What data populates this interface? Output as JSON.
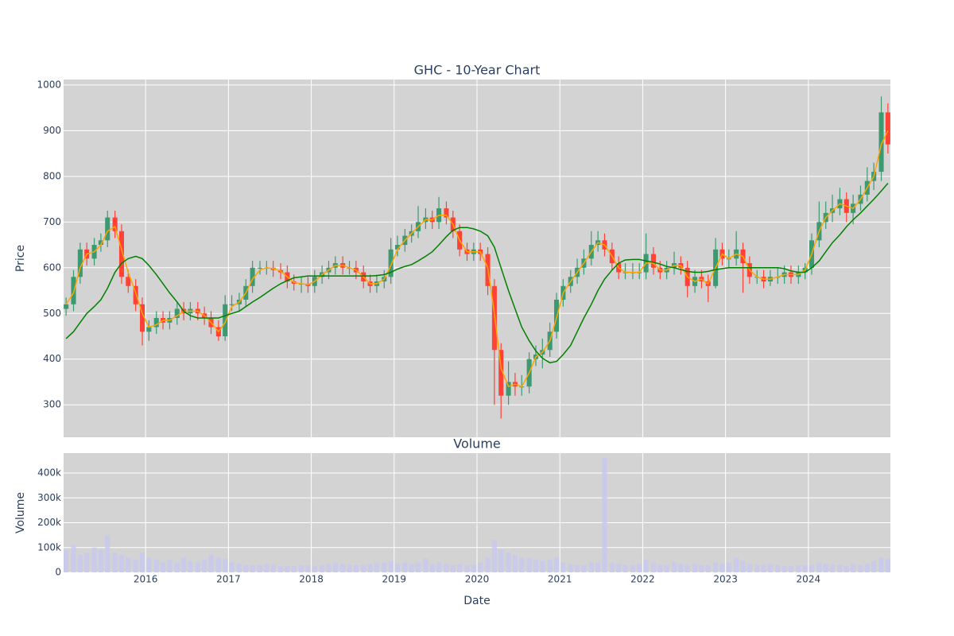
{
  "chart_data": {
    "type": "candlestick",
    "title": "GHC - 10-Year Chart",
    "ylabel": "Price",
    "xlabel": "Date",
    "grid": true,
    "increasing_color": "#3d9970",
    "decreasing_color": "#ff4136",
    "xlim": [
      2015.01,
      2024.99
    ],
    "xticks": [
      2016,
      2017,
      2018,
      2019,
      2020,
      2021,
      2022,
      2023,
      2024
    ],
    "ylim": [
      229,
      1012
    ],
    "yticks": [
      300,
      400,
      500,
      600,
      700,
      800,
      900,
      1000
    ],
    "x": [
      2015.04,
      2015.13,
      2015.21,
      2015.29,
      2015.38,
      2015.46,
      2015.54,
      2015.63,
      2015.71,
      2015.79,
      2015.88,
      2015.96,
      2016.04,
      2016.13,
      2016.21,
      2016.29,
      2016.38,
      2016.46,
      2016.54,
      2016.63,
      2016.71,
      2016.79,
      2016.88,
      2016.96,
      2017.04,
      2017.13,
      2017.21,
      2017.29,
      2017.38,
      2017.46,
      2017.54,
      2017.63,
      2017.71,
      2017.79,
      2017.88,
      2017.96,
      2018.04,
      2018.13,
      2018.21,
      2018.29,
      2018.38,
      2018.46,
      2018.54,
      2018.63,
      2018.71,
      2018.79,
      2018.88,
      2018.96,
      2019.04,
      2019.13,
      2019.21,
      2019.29,
      2019.38,
      2019.46,
      2019.54,
      2019.63,
      2019.71,
      2019.79,
      2019.88,
      2019.96,
      2020.04,
      2020.13,
      2020.21,
      2020.29,
      2020.38,
      2020.46,
      2020.54,
      2020.63,
      2020.71,
      2020.79,
      2020.88,
      2020.96,
      2021.04,
      2021.13,
      2021.21,
      2021.29,
      2021.38,
      2021.46,
      2021.54,
      2021.63,
      2021.71,
      2021.79,
      2021.88,
      2021.96,
      2022.04,
      2022.13,
      2022.21,
      2022.29,
      2022.38,
      2022.46,
      2022.54,
      2022.63,
      2022.71,
      2022.79,
      2022.88,
      2022.96,
      2023.04,
      2023.13,
      2023.21,
      2023.29,
      2023.38,
      2023.46,
      2023.54,
      2023.63,
      2023.71,
      2023.79,
      2023.88,
      2023.96,
      2024.04,
      2024.13,
      2024.21,
      2024.29,
      2024.38,
      2024.46,
      2024.54,
      2024.63,
      2024.71,
      2024.79,
      2024.88,
      2024.96
    ],
    "open": [
      510,
      520,
      580,
      640,
      620,
      650,
      660,
      710,
      680,
      580,
      560,
      520,
      460,
      470,
      490,
      480,
      490,
      510,
      500,
      510,
      500,
      490,
      470,
      450,
      520,
      520,
      530,
      560,
      600,
      600,
      600,
      595,
      590,
      570,
      565,
      565,
      560,
      580,
      590,
      600,
      610,
      600,
      600,
      590,
      570,
      560,
      570,
      580,
      640,
      650,
      670,
      680,
      700,
      710,
      700,
      730,
      710,
      680,
      640,
      630,
      640,
      630,
      560,
      420,
      320,
      350,
      340,
      340,
      400,
      410,
      420,
      460,
      530,
      560,
      580,
      600,
      620,
      650,
      660,
      640,
      610,
      590,
      590,
      590,
      590,
      630,
      600,
      590,
      600,
      610,
      600,
      560,
      580,
      570,
      560,
      640,
      620,
      620,
      640,
      610,
      580,
      580,
      570,
      580,
      580,
      590,
      580,
      590,
      600,
      660,
      700,
      720,
      730,
      750,
      720,
      740,
      760,
      790,
      810,
      940
    ],
    "high": [
      535,
      595,
      655,
      655,
      665,
      675,
      725,
      725,
      695,
      595,
      575,
      535,
      485,
      505,
      505,
      505,
      525,
      525,
      525,
      525,
      515,
      505,
      485,
      540,
      540,
      545,
      575,
      615,
      615,
      615,
      615,
      610,
      605,
      585,
      580,
      580,
      595,
      605,
      615,
      625,
      625,
      615,
      615,
      605,
      585,
      585,
      595,
      665,
      670,
      685,
      695,
      735,
      730,
      725,
      755,
      745,
      725,
      695,
      655,
      655,
      655,
      645,
      575,
      435,
      395,
      370,
      365,
      415,
      430,
      445,
      480,
      545,
      575,
      595,
      620,
      640,
      680,
      680,
      675,
      655,
      625,
      610,
      610,
      610,
      675,
      645,
      615,
      615,
      635,
      625,
      615,
      595,
      595,
      585,
      665,
      655,
      640,
      680,
      655,
      625,
      595,
      595,
      595,
      600,
      605,
      605,
      605,
      610,
      675,
      745,
      745,
      760,
      775,
      765,
      760,
      780,
      820,
      830,
      975,
      960
    ],
    "low": [
      495,
      505,
      565,
      605,
      605,
      635,
      645,
      665,
      565,
      545,
      505,
      430,
      440,
      455,
      465,
      465,
      475,
      485,
      485,
      485,
      475,
      455,
      440,
      440,
      505,
      505,
      515,
      545,
      585,
      585,
      580,
      575,
      555,
      550,
      545,
      545,
      545,
      565,
      575,
      585,
      585,
      585,
      575,
      555,
      545,
      545,
      555,
      565,
      625,
      635,
      655,
      665,
      685,
      685,
      685,
      695,
      665,
      625,
      615,
      615,
      615,
      540,
      300,
      270,
      300,
      320,
      320,
      325,
      385,
      380,
      405,
      445,
      515,
      545,
      565,
      585,
      605,
      635,
      625,
      595,
      575,
      575,
      575,
      575,
      575,
      585,
      575,
      575,
      585,
      585,
      535,
      545,
      555,
      525,
      555,
      605,
      600,
      605,
      545,
      565,
      565,
      555,
      560,
      565,
      565,
      565,
      565,
      575,
      585,
      645,
      685,
      700,
      715,
      700,
      695,
      725,
      745,
      770,
      790,
      850
    ],
    "close": [
      520,
      580,
      640,
      620,
      650,
      660,
      710,
      680,
      580,
      560,
      520,
      460,
      470,
      490,
      480,
      490,
      510,
      500,
      510,
      500,
      490,
      470,
      450,
      520,
      520,
      530,
      560,
      600,
      600,
      600,
      595,
      590,
      570,
      565,
      565,
      560,
      580,
      590,
      600,
      610,
      600,
      600,
      590,
      570,
      560,
      570,
      580,
      640,
      650,
      670,
      680,
      700,
      710,
      700,
      730,
      710,
      680,
      640,
      630,
      640,
      630,
      560,
      420,
      320,
      350,
      340,
      340,
      400,
      410,
      420,
      460,
      530,
      560,
      580,
      600,
      620,
      650,
      660,
      640,
      610,
      590,
      590,
      590,
      590,
      630,
      600,
      590,
      600,
      610,
      600,
      560,
      580,
      570,
      560,
      640,
      620,
      620,
      640,
      610,
      580,
      580,
      570,
      580,
      580,
      590,
      580,
      590,
      600,
      660,
      700,
      720,
      730,
      750,
      720,
      740,
      760,
      790,
      810,
      940,
      870
    ],
    "moving_averages": [
      {
        "color": "#ffa500",
        "values": [
          520,
          545,
          600,
          630,
          635,
          650,
          680,
          690,
          640,
          590,
          545,
          500,
          470,
          475,
          485,
          485,
          495,
          505,
          505,
          505,
          495,
          480,
          460,
          480,
          515,
          525,
          545,
          575,
          595,
          600,
          598,
          593,
          580,
          568,
          565,
          563,
          570,
          585,
          595,
          605,
          605,
          600,
          595,
          580,
          565,
          565,
          575,
          605,
          640,
          660,
          675,
          690,
          705,
          705,
          715,
          715,
          695,
          660,
          635,
          635,
          635,
          600,
          500,
          380,
          340,
          345,
          340,
          370,
          405,
          415,
          440,
          490,
          545,
          570,
          590,
          610,
          635,
          655,
          650,
          625,
          600,
          590,
          590,
          590,
          610,
          610,
          595,
          595,
          605,
          605,
          580,
          570,
          575,
          565,
          600,
          630,
          620,
          630,
          625,
          595,
          580,
          575,
          575,
          580,
          585,
          585,
          585,
          595,
          630,
          680,
          710,
          725,
          740,
          735,
          730,
          750,
          775,
          800,
          870,
          900
        ]
      },
      {
        "color": "#008000",
        "values": [
          445,
          460,
          480,
          500,
          515,
          530,
          555,
          590,
          610,
          620,
          625,
          620,
          605,
          585,
          565,
          545,
          525,
          505,
          495,
          490,
          490,
          490,
          490,
          495,
          500,
          505,
          515,
          525,
          535,
          545,
          555,
          565,
          572,
          578,
          580,
          582,
          582,
          582,
          582,
          582,
          582,
          582,
          582,
          582,
          582,
          583,
          585,
          590,
          597,
          603,
          607,
          615,
          625,
          635,
          650,
          668,
          682,
          688,
          688,
          685,
          680,
          670,
          645,
          600,
          550,
          510,
          470,
          440,
          418,
          402,
          392,
          395,
          410,
          430,
          460,
          490,
          520,
          550,
          575,
          595,
          610,
          617,
          618,
          618,
          615,
          612,
          608,
          603,
          600,
          596,
          592,
          590,
          590,
          592,
          596,
          598,
          600,
          600,
          600,
          600,
          600,
          600,
          600,
          600,
          598,
          593,
          590,
          590,
          600,
          615,
          635,
          655,
          672,
          690,
          705,
          720,
          735,
          750,
          768,
          785
        ]
      }
    ],
    "volume": {
      "title": "Volume",
      "ylabel": "Volume",
      "color": "#c8c8ee",
      "ylim": [
        0,
        480000
      ],
      "yticks": [
        0,
        {
          "value": 100000,
          "label": "100k"
        },
        {
          "value": 200000,
          "label": "200k"
        },
        {
          "value": 300000,
          "label": "300k"
        },
        {
          "value": 400000,
          "label": "400k"
        }
      ],
      "values": [
        90000,
        110000,
        70000,
        80000,
        100000,
        90000,
        150000,
        80000,
        70000,
        60000,
        50000,
        80000,
        60000,
        50000,
        40000,
        50000,
        40000,
        60000,
        45000,
        40000,
        50000,
        70000,
        60000,
        55000,
        40000,
        35000,
        30000,
        30000,
        30000,
        35000,
        30000,
        25000,
        25000,
        25000,
        30000,
        30000,
        25000,
        30000,
        35000,
        40000,
        35000,
        30000,
        30000,
        30000,
        35000,
        40000,
        40000,
        45000,
        35000,
        40000,
        35000,
        40000,
        55000,
        35000,
        40000,
        35000,
        30000,
        35000,
        30000,
        30000,
        40000,
        60000,
        130000,
        90000,
        80000,
        70000,
        60000,
        60000,
        50000,
        45000,
        50000,
        60000,
        40000,
        35000,
        30000,
        30000,
        40000,
        40000,
        460000,
        40000,
        35000,
        30000,
        30000,
        35000,
        50000,
        40000,
        30000,
        30000,
        40000,
        35000,
        30000,
        35000,
        30000,
        30000,
        40000,
        35000,
        40000,
        60000,
        45000,
        35000,
        30000,
        30000,
        35000,
        30000,
        25000,
        25000,
        30000,
        30000,
        30000,
        40000,
        35000,
        30000,
        30000,
        25000,
        35000,
        30000,
        35000,
        45000,
        60000,
        55000
      ]
    }
  }
}
